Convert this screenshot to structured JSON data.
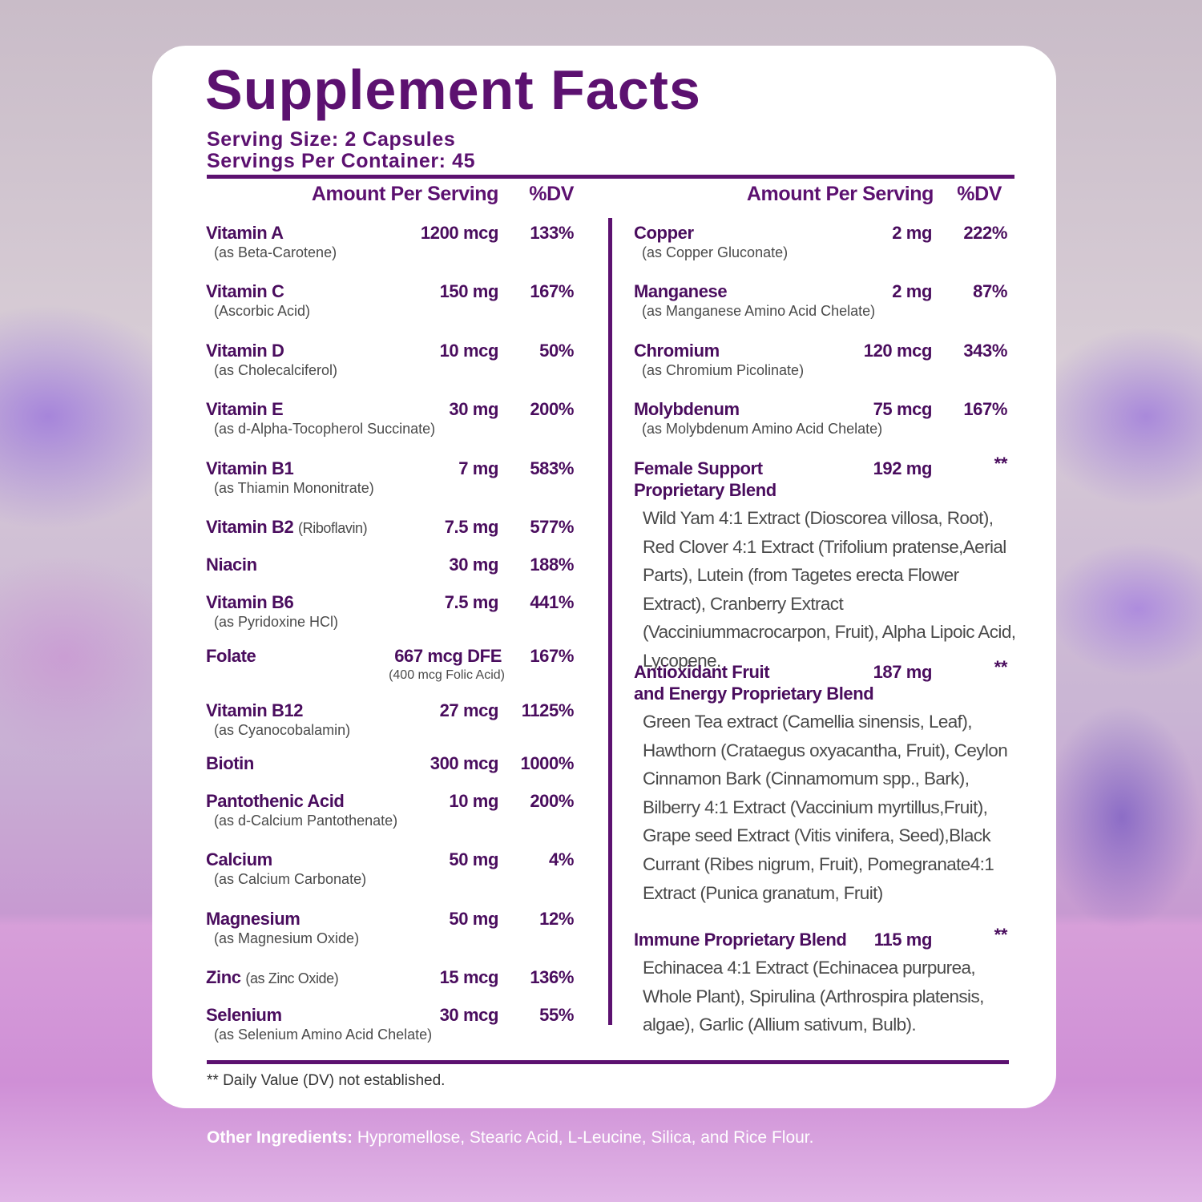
{
  "title": "Supplement Facts",
  "serving_size": "Serving Size: 2 Capsules",
  "servings_per_container": "Servings Per Container: 45",
  "left_header": {
    "amount": "Amount Per Serving",
    "dv": "%DV"
  },
  "right_header": {
    "amount": "Amount Per Serving",
    "dv": "%DV"
  },
  "left_rows": [
    {
      "name": "Vitamin A",
      "source": "(as Beta-Carotene)",
      "amount": "1200 mcg",
      "dv": "133%"
    },
    {
      "name": "Vitamin C",
      "source": "(Ascorbic Acid)",
      "amount": "150 mg",
      "dv": "167%"
    },
    {
      "name": "Vitamin D",
      "source": "(as Cholecalciferol)",
      "amount": "10 mcg",
      "dv": "50%"
    },
    {
      "name": "Vitamin E",
      "source": "(as d-Alpha-Tocopherol Succinate)",
      "amount": "30 mg",
      "dv": "200%"
    },
    {
      "name": "Vitamin B1",
      "source": "(as Thiamin Mononitrate)",
      "amount": "7 mg",
      "dv": "583%"
    },
    {
      "name": "Vitamin B2",
      "source_inline": "(Riboflavin)",
      "amount": "7.5 mg",
      "dv": "577%"
    },
    {
      "name": "Niacin",
      "amount": "30 mg",
      "dv": "188%"
    },
    {
      "name": "Vitamin B6",
      "source": "(as Pyridoxine HCl)",
      "amount": "7.5 mg",
      "dv": "441%"
    },
    {
      "name": "Folate",
      "amount": "667 mcg DFE",
      "amount_note": "(400 mcg Folic Acid)",
      "dv": "167%"
    },
    {
      "name": "Vitamin B12",
      "source": "(as Cyanocobalamin)",
      "amount": "27 mcg",
      "dv": "1125%"
    },
    {
      "name": "Biotin",
      "amount": "300 mcg",
      "dv": "1000%"
    },
    {
      "name": "Pantothenic Acid",
      "source": "(as d-Calcium Pantothenate)",
      "amount": "10 mg",
      "dv": "200%"
    },
    {
      "name": "Calcium",
      "source": "(as Calcium Carbonate)",
      "amount": "50 mg",
      "dv": "4%"
    },
    {
      "name": "Magnesium",
      "source": "(as Magnesium Oxide)",
      "amount": "50 mg",
      "dv": "12%"
    },
    {
      "name": "Zinc",
      "source_inline": "(as Zinc Oxide)",
      "amount": "15 mcg",
      "dv": "136%"
    },
    {
      "name": "Selenium",
      "source": "(as Selenium Amino Acid Chelate)",
      "amount": "30 mcg",
      "dv": "55%"
    }
  ],
  "right_rows": [
    {
      "name": "Copper",
      "source": "(as Copper Gluconate)",
      "amount": "2 mg",
      "dv": "222%"
    },
    {
      "name": "Manganese",
      "source": "(as Manganese Amino Acid Chelate)",
      "amount": "2 mg",
      "dv": "87%"
    },
    {
      "name": "Chromium",
      "source": "(as Chromium Picolinate)",
      "amount": "120 mcg",
      "dv": "343%"
    },
    {
      "name": "Molybdenum",
      "source": "(as Molybdenum Amino Acid Chelate)",
      "amount": "75 mcg",
      "dv": "167%"
    }
  ],
  "blends": [
    {
      "name": [
        "Female Support",
        "Proprietary Blend"
      ],
      "amount": "192 mg",
      "dv": "**",
      "ingredients": "Wild Yam 4:1 Extract (Dioscorea villosa, Root), Red Clover 4:1 Extract (Trifolium pratense,Aerial Parts), Lutein (from Tagetes erecta Flower Extract), Cranberry Extract (Vacciniummacrocarpon, Fruit), Alpha Lipoic Acid, Lycopene."
    },
    {
      "name": [
        "Antioxidant Fruit",
        "and Energy Proprietary Blend"
      ],
      "amount": "187 mg",
      "dv": "**",
      "ingredients": "Green Tea extract (Camellia sinensis, Leaf), Hawthorn (Crataegus oxyacantha, Fruit), Ceylon Cinnamon Bark (Cinnamomum spp., Bark), Bilberry 4:1 Extract (Vaccinium myrtillus,Fruit), Grape seed Extract (Vitis vinifera, Seed),Black Currant (Ribes nigrum, Fruit), Pomegranate4:1 Extract (Punica granatum, Fruit)"
    },
    {
      "name": [
        "Immune Proprietary Blend"
      ],
      "amount": "115 mg",
      "dv": "**",
      "ingredients": "Echinacea 4:1 Extract (Echinacea purpurea, Whole Plant), Spirulina (Arthrospira platensis, algae), Garlic (Allium sativum, Bulb)."
    }
  ],
  "footnote": "** Daily Value (DV) not established.",
  "other_ingredients": {
    "label": "Other Ingredients:",
    "text": "Hypromellose, Stearic Acid, L-Leucine, Silica, and Rice Flour."
  }
}
